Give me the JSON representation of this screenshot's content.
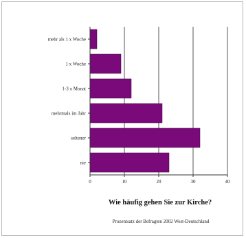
{
  "chart_data": {
    "type": "bar",
    "orientation": "horizontal",
    "title": "Wie häufig gehen Sie zur Kirche?",
    "caption": "Prozentsatz der Befragten 2002 West-Deutschland",
    "categories": [
      "mehr als 1 x Woche",
      "1 x Woche",
      "1-3 x Monat",
      "mehrmals im Jahr",
      "seltener",
      "nie"
    ],
    "values": [
      2,
      9,
      12,
      21,
      32,
      23
    ],
    "xlim": [
      0,
      40
    ],
    "xticks": [
      0,
      10,
      20,
      30,
      40
    ],
    "grid": true,
    "bar_color": "#7a0a7a"
  }
}
